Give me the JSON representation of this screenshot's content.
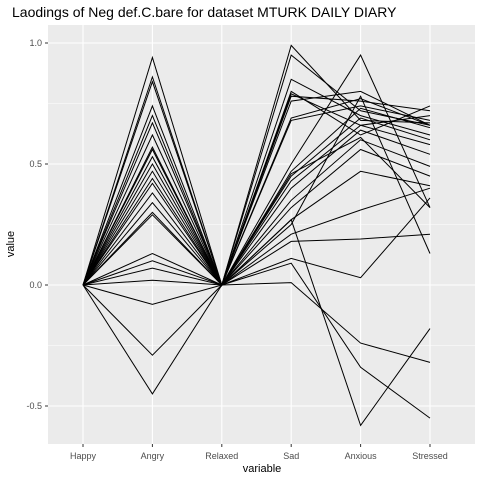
{
  "chart_data": {
    "type": "line",
    "title": "Laodings of Neg def.C.bare for dataset MTURK DAILY DIARY",
    "xlabel": "variable",
    "ylabel": "value",
    "categories": [
      "Happy",
      "Angry",
      "Relaxed",
      "Sad",
      "Anxious",
      "Stressed"
    ],
    "yticks": [
      1.0,
      0.5,
      0.0,
      -0.5
    ],
    "ytick_labels": [
      "1.0",
      "0.5",
      "0.0",
      "-0.5"
    ],
    "ylim": [
      -0.65,
      1.0
    ],
    "grid": true,
    "background": "#ebebeb",
    "gridline_color": "#ffffff",
    "line_color": "#000000",
    "series": [
      {
        "values": [
          0,
          0.94,
          0,
          0.99,
          0.68,
          0.67
        ]
      },
      {
        "values": [
          0,
          0.86,
          0,
          0.85,
          0.7,
          0.62
        ]
      },
      {
        "values": [
          0,
          0.84,
          0,
          0.8,
          0.62,
          0.74
        ]
      },
      {
        "values": [
          0,
          0.74,
          0,
          0.79,
          0.66,
          0.7
        ]
      },
      {
        "values": [
          0,
          0.7,
          0,
          0.78,
          0.76,
          0.72
        ]
      },
      {
        "values": [
          0,
          0.67,
          0,
          0.76,
          0.8,
          0.66
        ]
      },
      {
        "values": [
          0,
          0.62,
          0,
          0.69,
          0.77,
          0.66
        ]
      },
      {
        "values": [
          0,
          0.57,
          0,
          0.68,
          0.74,
          0.68
        ]
      },
      {
        "values": [
          0,
          0.56,
          0,
          0.5,
          0.95,
          0.32
        ]
      },
      {
        "values": [
          0,
          0.53,
          0,
          0.47,
          0.73,
          0.65
        ]
      },
      {
        "values": [
          0,
          0.5,
          0,
          0.46,
          0.61,
          0.32
        ]
      },
      {
        "values": [
          0,
          0.47,
          0,
          0.45,
          0.69,
          0.6
        ]
      },
      {
        "values": [
          0,
          0.44,
          0,
          0.43,
          0.66,
          0.58
        ]
      },
      {
        "values": [
          0,
          0.42,
          0,
          0.4,
          0.64,
          0.54
        ]
      },
      {
        "values": [
          0,
          0.38,
          0,
          0.35,
          0.6,
          0.49
        ]
      },
      {
        "values": [
          0,
          0.34,
          0,
          0.32,
          0.56,
          0.45
        ]
      },
      {
        "values": [
          0,
          0.3,
          0,
          0.27,
          0.47,
          0.41
        ]
      },
      {
        "values": [
          0,
          0.29,
          0,
          0.25,
          0.78,
          0.13
        ]
      },
      {
        "values": [
          0,
          0.13,
          0,
          0.21,
          0.31,
          0.4
        ]
      },
      {
        "values": [
          0,
          0.1,
          0,
          0.18,
          0.19,
          0.21
        ]
      },
      {
        "values": [
          0,
          0.07,
          0,
          0.11,
          0.03,
          0.36
        ]
      },
      {
        "values": [
          0,
          0.02,
          0,
          0.27,
          -0.58,
          -0.18
        ]
      },
      {
        "values": [
          0,
          -0.08,
          0,
          0.01,
          -0.24,
          -0.32
        ]
      },
      {
        "values": [
          0,
          -0.29,
          0,
          0.09,
          -0.34,
          -0.55
        ]
      },
      {
        "values": [
          0,
          -0.45,
          0,
          0.95,
          0.72,
          0.66
        ]
      }
    ]
  }
}
